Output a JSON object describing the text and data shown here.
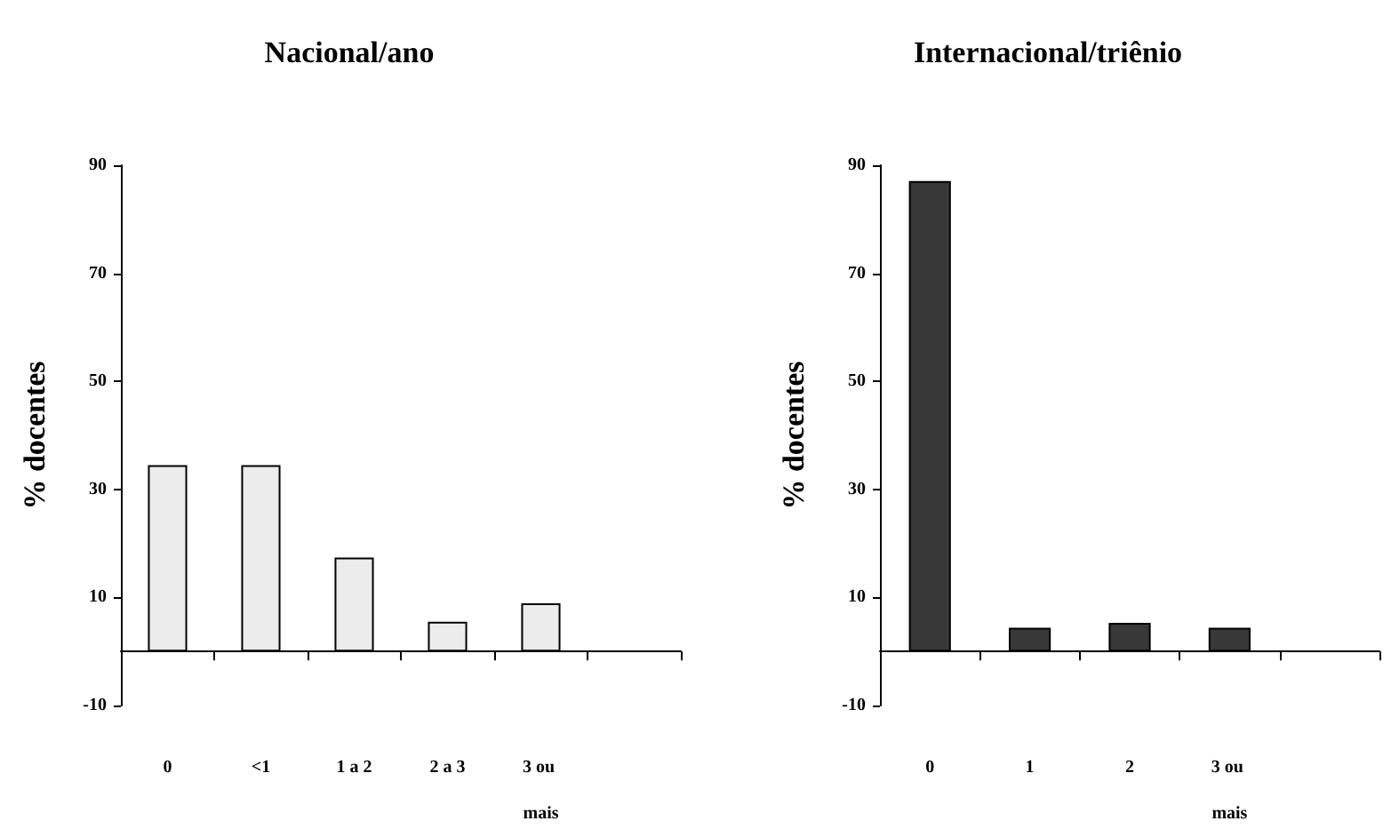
{
  "chart_data": [
    {
      "type": "bar",
      "title": "Nacional/ano",
      "ylabel": "% docentes",
      "categories": [
        "0",
        "<1",
        "1 a 2",
        "2 a 3",
        "3 ou mais",
        null
      ],
      "series": [
        {
          "color": "#ececec",
          "values": [
            34.5,
            34.5,
            17.4,
            5.5,
            8.9,
            null
          ]
        }
      ],
      "ylim": [
        -10,
        90
      ],
      "yticks": [
        -10,
        10,
        30,
        50,
        70,
        90
      ]
    },
    {
      "type": "bar",
      "title": "Internacional/triênio",
      "ylabel": "% docentes",
      "categories": [
        "0",
        "1",
        "2",
        "3 ou mais",
        null
      ],
      "series": [
        {
          "color": "#383838",
          "values": [
            87.1,
            4.4,
            5.3,
            4.4,
            null
          ]
        }
      ],
      "ylim": [
        -10,
        90
      ],
      "yticks": [
        -10,
        10,
        30,
        50,
        70,
        90
      ]
    }
  ]
}
